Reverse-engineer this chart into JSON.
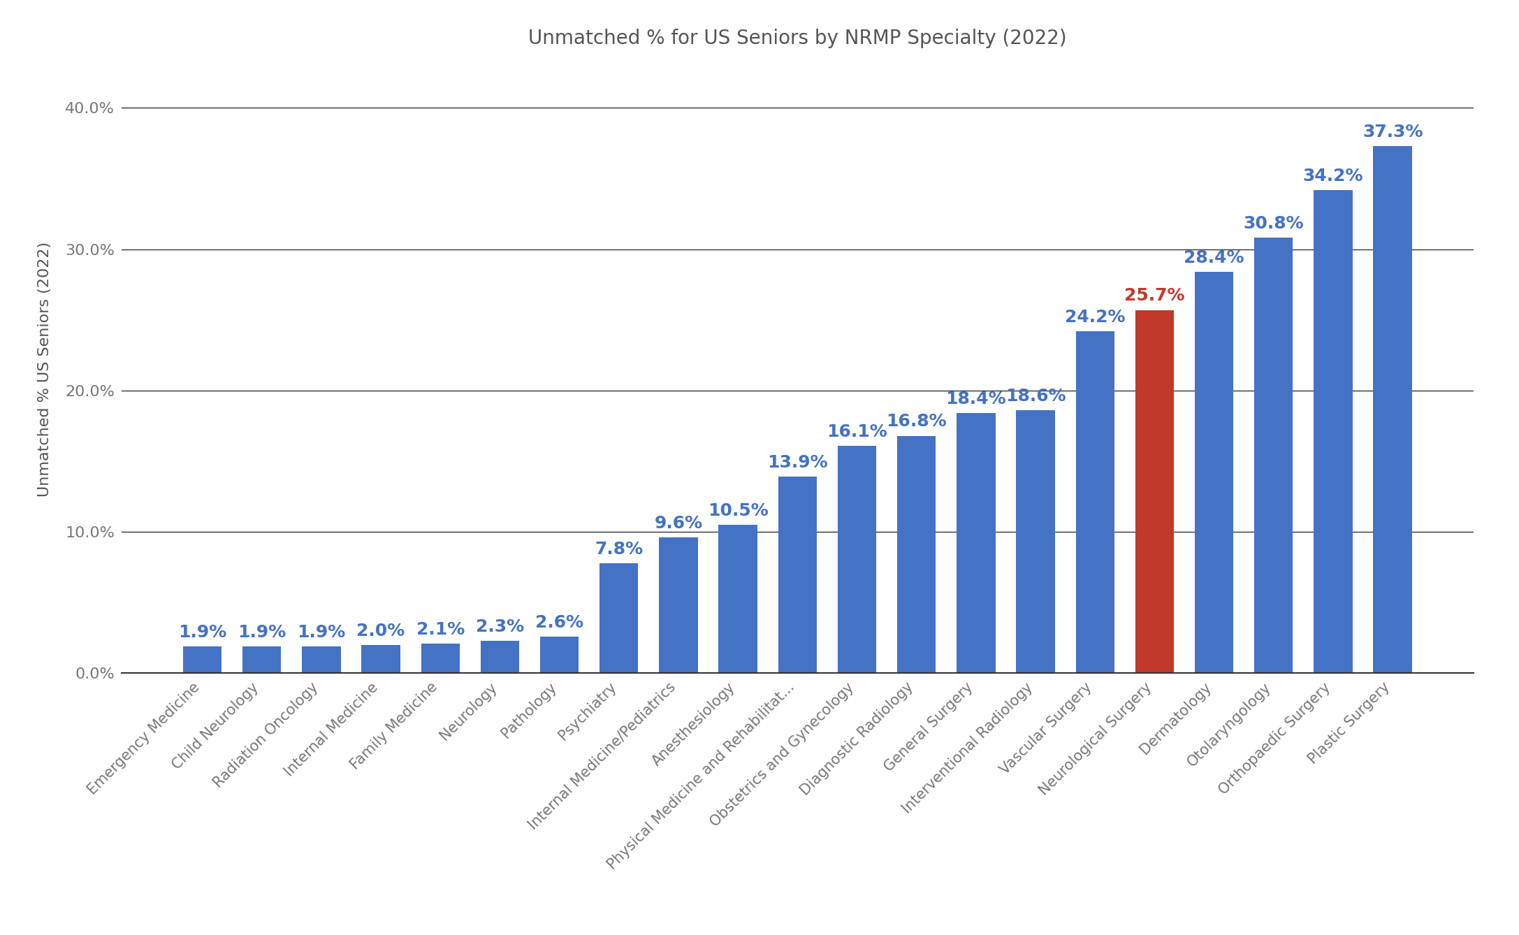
{
  "title": "Unmatched % for US Seniors by NRMP Specialty (2022)",
  "ylabel": "Unmatched % US Seniors (2022)",
  "categories": [
    "Emergency Medicine",
    "Child Neurology",
    "Radiation Oncology",
    "Internal Medicine",
    "Family Medicine",
    "Neurology",
    "Pathology",
    "Psychiatry",
    "Internal Medicine/Pediatrics",
    "Anesthesiology",
    "Physical Medicine and Rehabilitat...",
    "Obstetrics and Gynecology",
    "Diagnostic Radiology",
    "General Surgery",
    "Interventional Radiology",
    "Vascular Surgery",
    "Neurological Surgery",
    "Dermatology",
    "Otolaryngology",
    "Orthopaedic Surgery",
    "Plastic Surgery"
  ],
  "values": [
    1.9,
    1.9,
    1.9,
    2.0,
    2.1,
    2.3,
    2.6,
    7.8,
    9.6,
    10.5,
    13.9,
    16.1,
    16.8,
    18.4,
    18.6,
    24.2,
    25.7,
    28.4,
    30.8,
    34.2,
    37.3
  ],
  "highlight_index": 16,
  "bar_color": "#4472C4",
  "highlight_color": "#C0392B",
  "label_color_default": "#4472C4",
  "label_color_highlight": "#C0392B",
  "background_color": "#FFFFFF",
  "grid_color": "#333333",
  "title_color": "#555555",
  "axis_label_color": "#555555",
  "tick_label_color": "#777777",
  "yticks": [
    0.0,
    10.0,
    20.0,
    30.0,
    40.0
  ],
  "ylim": [
    0,
    43
  ],
  "figsize": [
    21.74,
    13.38
  ],
  "dpi": 100,
  "bar_width": 0.65,
  "value_label_fontsize": 18,
  "xtick_fontsize": 15,
  "ytick_fontsize": 16,
  "ylabel_fontsize": 16,
  "title_fontsize": 20
}
